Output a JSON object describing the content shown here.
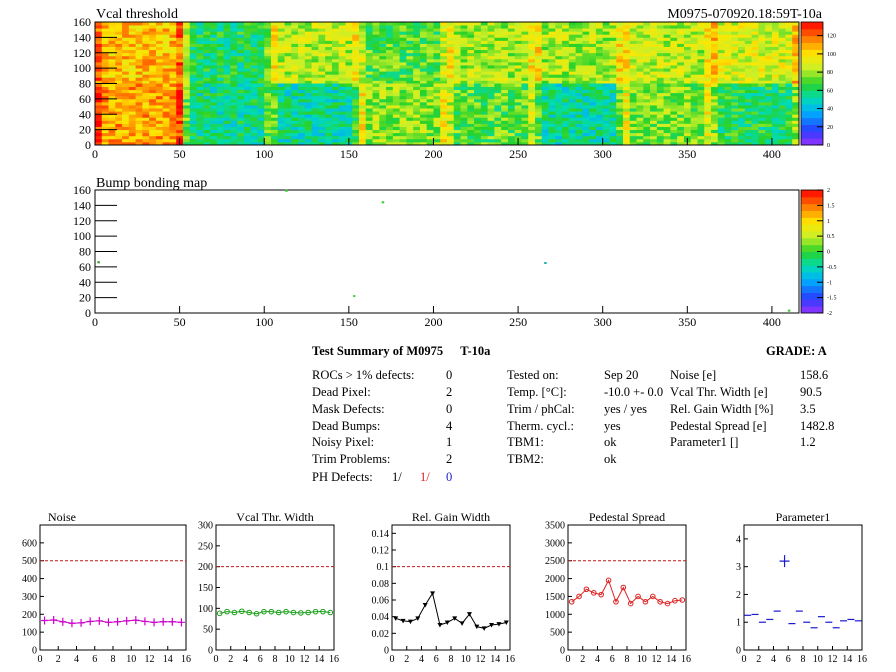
{
  "map_titles": {
    "vcal": "Vcal threshold",
    "bump": "Bump bonding map",
    "module_id": "M0975-070920.18:59T-10a"
  },
  "maps": {
    "x_ticks": [
      0,
      50,
      100,
      150,
      200,
      250,
      300,
      350,
      400
    ],
    "y_ticks": [
      0,
      20,
      40,
      60,
      80,
      100,
      120,
      140,
      160
    ],
    "vcal_palette_ticks": [
      0,
      20,
      40,
      60,
      80,
      100,
      120
    ],
    "bump_palette_ticks": [
      -2,
      -1.5,
      -1,
      -0.5,
      0,
      0.5,
      1,
      1.5,
      2
    ],
    "roc_vcal_levels": [
      [
        0.78,
        0.45,
        0.62,
        0.52,
        0.6,
        0.6,
        0.62,
        0.66
      ],
      [
        0.82,
        0.42,
        0.4,
        0.58,
        0.52,
        0.4,
        0.56,
        0.46
      ]
    ],
    "bump_marks": [
      {
        "x": 113,
        "y": 159,
        "color": "#2ecc2e"
      },
      {
        "x": 170,
        "y": 144,
        "color": "#2ecc2e"
      },
      {
        "x": 266,
        "y": 65,
        "color": "#20b0b0"
      },
      {
        "x": 153,
        "y": 22,
        "color": "#50d050"
      },
      {
        "x": 2,
        "y": 66,
        "color": "#2a9a2a"
      },
      {
        "x": 410,
        "y": 3,
        "color": "#2ecc2e"
      }
    ]
  },
  "summary": {
    "title": "Test Summary of M0975",
    "temp_tag": "T-10a",
    "grade": "GRADE:  A",
    "defects": [
      {
        "label": "ROCs > 1% defects:",
        "value": "0"
      },
      {
        "label": "Dead Pixel:",
        "value": "2"
      },
      {
        "label": "Mask Defects:",
        "value": "0"
      },
      {
        "label": "Dead Bumps:",
        "value": "4"
      },
      {
        "label": "Noisy Pixel:",
        "value": "1"
      },
      {
        "label": "Trim Problems:",
        "value": "2"
      }
    ],
    "ph_defects": {
      "label": "PH Defects:",
      "v1": "1/",
      "v2": "1/",
      "v3": "0"
    },
    "conditions": [
      {
        "label": "Tested on:",
        "value": "Sep 20"
      },
      {
        "label": "Temp. [°C]:",
        "value": "-10.0 +- 0.0"
      },
      {
        "label": "Trim / phCal:",
        "value": "yes / yes"
      },
      {
        "label": "Therm. cycl.:",
        "value": "yes"
      },
      {
        "label": "TBM1:",
        "value": "ok"
      },
      {
        "label": "TBM2:",
        "value": "ok"
      }
    ],
    "params": [
      {
        "label": "Noise [e]",
        "value": "158.6"
      },
      {
        "label": "Vcal Thr. Width [e]",
        "value": "90.5"
      },
      {
        "label": "Rel. Gain Width [%]",
        "value": "3.5"
      },
      {
        "label": "Pedestal Spread [e]",
        "value": "1482.8"
      },
      {
        "label": "Parameter1 []",
        "value": "1.2"
      }
    ],
    "colors": {
      "red": "#e02020",
      "blue": "#1a1ad0"
    }
  },
  "chart_data": [
    {
      "type": "line",
      "title": "Noise",
      "color": "#cc00cc",
      "marker": "cross",
      "x": [
        0,
        1,
        2,
        3,
        4,
        5,
        6,
        7,
        8,
        9,
        10,
        11,
        12,
        13,
        14,
        15
      ],
      "values": [
        165,
        168,
        158,
        150,
        152,
        160,
        163,
        155,
        158,
        163,
        167,
        160,
        155,
        158,
        158,
        155
      ],
      "xlim": [
        0,
        16
      ],
      "ylim": [
        0,
        700
      ],
      "xticks": [
        0,
        2,
        4,
        6,
        8,
        10,
        12,
        14,
        16
      ],
      "yticks": [
        0,
        100,
        200,
        300,
        400,
        500,
        600
      ],
      "ref_line": 500
    },
    {
      "type": "line",
      "title": "Vcal Thr. Width",
      "color": "#1aa01a",
      "marker": "circle",
      "x": [
        0,
        1,
        2,
        3,
        4,
        5,
        6,
        7,
        8,
        9,
        10,
        11,
        12,
        13,
        14,
        15
      ],
      "values": [
        88,
        92,
        90,
        93,
        90,
        87,
        92,
        92,
        90,
        92,
        90,
        89,
        90,
        92,
        92,
        90
      ],
      "xlim": [
        0,
        16
      ],
      "ylim": [
        0,
        300
      ],
      "xticks": [
        0,
        2,
        4,
        6,
        8,
        10,
        12,
        14,
        16
      ],
      "yticks": [
        0,
        50,
        100,
        150,
        200,
        250,
        300
      ],
      "ref_line": 200
    },
    {
      "type": "line",
      "title": "Rel. Gain Width",
      "color": "#000000",
      "marker": "triangle",
      "x": [
        0,
        1,
        2,
        3,
        4,
        5,
        6,
        7,
        8,
        9,
        10,
        11,
        12,
        13,
        14,
        15
      ],
      "values": [
        0.038,
        0.035,
        0.034,
        0.038,
        0.054,
        0.068,
        0.03,
        0.033,
        0.038,
        0.032,
        0.043,
        0.028,
        0.026,
        0.03,
        0.031,
        0.033
      ],
      "xlim": [
        0,
        16
      ],
      "ylim": [
        0,
        0.15
      ],
      "xticks": [
        0,
        2,
        4,
        6,
        8,
        10,
        12,
        14,
        16
      ],
      "yticks": [
        0,
        0.02,
        0.04,
        0.06,
        0.08,
        0.1,
        0.12,
        0.14
      ],
      "ref_line": 0.1
    },
    {
      "type": "line",
      "title": "Pedestal Spread",
      "color": "#dd2222",
      "marker": "circle",
      "x": [
        0,
        1,
        2,
        3,
        4,
        5,
        6,
        7,
        8,
        9,
        10,
        11,
        12,
        13,
        14,
        15
      ],
      "values": [
        1350,
        1500,
        1700,
        1600,
        1550,
        1950,
        1350,
        1750,
        1300,
        1500,
        1350,
        1500,
        1350,
        1300,
        1380,
        1400
      ],
      "xlim": [
        0,
        16
      ],
      "ylim": [
        0,
        3500
      ],
      "xticks": [
        0,
        2,
        4,
        6,
        8,
        10,
        12,
        14,
        16
      ],
      "yticks": [
        0,
        500,
        1000,
        1500,
        2000,
        2500,
        3000,
        3500
      ],
      "ref_line": 2500
    },
    {
      "type": "scatter",
      "title": "Parameter1",
      "color": "#1a1ad0",
      "marker": "hline",
      "x": [
        0,
        1,
        2,
        3,
        4,
        5,
        6,
        7,
        8,
        9,
        10,
        11,
        12,
        13,
        14,
        15
      ],
      "values": [
        1.25,
        1.28,
        1.0,
        1.1,
        1.4,
        3.2,
        0.95,
        1.4,
        1.0,
        0.8,
        1.2,
        1.0,
        0.8,
        1.05,
        1.1,
        1.05
      ],
      "xlim": [
        0,
        16
      ],
      "ylim": [
        0,
        4.5
      ],
      "xticks": [
        0,
        2,
        4,
        6,
        8,
        10,
        12,
        14,
        16
      ],
      "yticks": [
        0,
        1,
        2,
        3,
        4
      ],
      "ref_line": null
    }
  ]
}
